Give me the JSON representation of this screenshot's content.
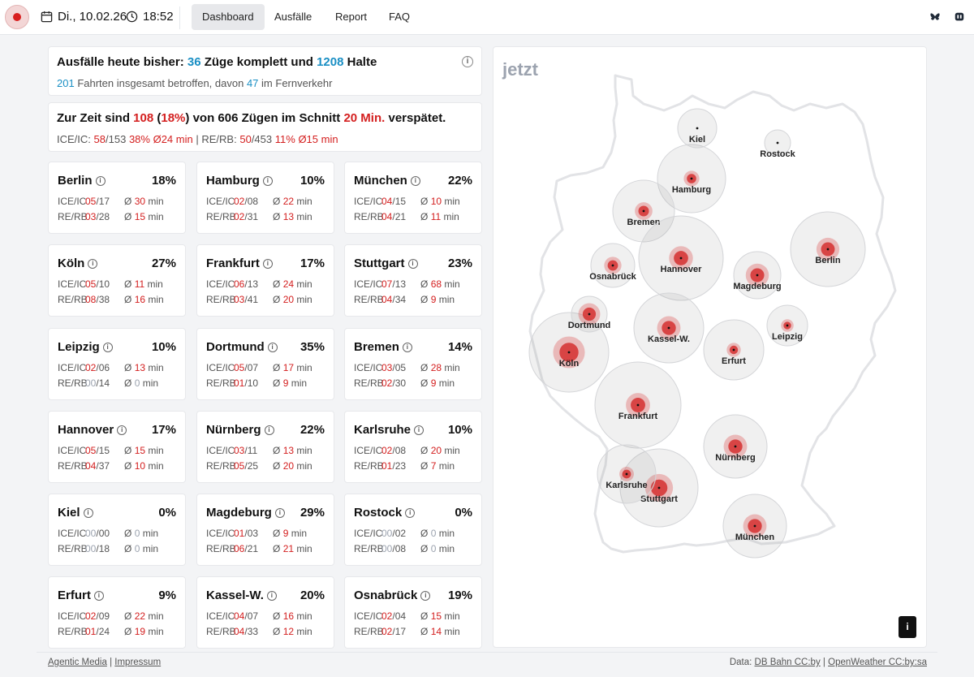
{
  "header": {
    "date": "Di., 10.02.26",
    "time": "18:52",
    "nav": [
      "Dashboard",
      "Ausfälle",
      "Report",
      "FAQ"
    ],
    "active_nav": "Dashboard"
  },
  "summary": {
    "line1": {
      "pre": "Ausfälle heute bisher:",
      "trains": "36",
      "mid": "Züge komplett und",
      "stops": "1208",
      "post": "Halte"
    },
    "line2": {
      "trips": "201",
      "mid": "Fahrten insgesamt betroffen, davon",
      "long": "47",
      "post": "im Fernverkehr"
    },
    "line3": {
      "pre": "Zur Zeit sind",
      "delayed": "108",
      "pct": "18%",
      "mid": "von 606 Zügen im Schnitt",
      "avg": "20 Min.",
      "post": "verspätet."
    },
    "line4": {
      "ice_label": "ICE/IC:",
      "ice_cnt": "58",
      "ice_tot": "/153",
      "ice_pct": "38%",
      "ice_avg": "Ø24 min",
      "sep": "|",
      "re_label": "RE/RB:",
      "re_cnt": "50",
      "re_tot": "/453",
      "re_pct": "11%",
      "re_avg": "Ø15 min"
    }
  },
  "row_labels": {
    "ice": "ICE/IC",
    "re": "RE/RB"
  },
  "cities": [
    {
      "name": "Berlin",
      "pct": "18%",
      "ice_cnt": "05",
      "ice_tot": "/17",
      "ice_avg": "30",
      "re_cnt": "03",
      "re_tot": "/28",
      "re_avg": "15"
    },
    {
      "name": "Hamburg",
      "pct": "10%",
      "ice_cnt": "02",
      "ice_tot": "/08",
      "ice_avg": "22",
      "re_cnt": "02",
      "re_tot": "/31",
      "re_avg": "13"
    },
    {
      "name": "München",
      "pct": "22%",
      "ice_cnt": "04",
      "ice_tot": "/15",
      "ice_avg": "10",
      "re_cnt": "04",
      "re_tot": "/21",
      "re_avg": "11"
    },
    {
      "name": "Köln",
      "pct": "27%",
      "ice_cnt": "05",
      "ice_tot": "/10",
      "ice_avg": "11",
      "re_cnt": "08",
      "re_tot": "/38",
      "re_avg": "16"
    },
    {
      "name": "Frankfurt",
      "pct": "17%",
      "ice_cnt": "06",
      "ice_tot": "/13",
      "ice_avg": "24",
      "re_cnt": "03",
      "re_tot": "/41",
      "re_avg": "20"
    },
    {
      "name": "Stuttgart",
      "pct": "23%",
      "ice_cnt": "07",
      "ice_tot": "/13",
      "ice_avg": "68",
      "re_cnt": "04",
      "re_tot": "/34",
      "re_avg": "9"
    },
    {
      "name": "Leipzig",
      "pct": "10%",
      "ice_cnt": "02",
      "ice_tot": "/06",
      "ice_avg": "13",
      "re_cnt": "00",
      "re_tot": "/14",
      "re_avg": "0"
    },
    {
      "name": "Dortmund",
      "pct": "35%",
      "ice_cnt": "05",
      "ice_tot": "/07",
      "ice_avg": "17",
      "re_cnt": "01",
      "re_tot": "/10",
      "re_avg": "9"
    },
    {
      "name": "Bremen",
      "pct": "14%",
      "ice_cnt": "03",
      "ice_tot": "/05",
      "ice_avg": "28",
      "re_cnt": "02",
      "re_tot": "/30",
      "re_avg": "9"
    },
    {
      "name": "Hannover",
      "pct": "17%",
      "ice_cnt": "05",
      "ice_tot": "/15",
      "ice_avg": "15",
      "re_cnt": "04",
      "re_tot": "/37",
      "re_avg": "10"
    },
    {
      "name": "Nürnberg",
      "pct": "22%",
      "ice_cnt": "03",
      "ice_tot": "/11",
      "ice_avg": "13",
      "re_cnt": "05",
      "re_tot": "/25",
      "re_avg": "20"
    },
    {
      "name": "Karlsruhe",
      "pct": "10%",
      "ice_cnt": "02",
      "ice_tot": "/08",
      "ice_avg": "20",
      "re_cnt": "01",
      "re_tot": "/23",
      "re_avg": "7"
    },
    {
      "name": "Kiel",
      "pct": "0%",
      "ice_cnt": "00",
      "ice_tot": "/00",
      "ice_avg": "0",
      "re_cnt": "00",
      "re_tot": "/18",
      "re_avg": "0"
    },
    {
      "name": "Magdeburg",
      "pct": "29%",
      "ice_cnt": "01",
      "ice_tot": "/03",
      "ice_avg": "9",
      "re_cnt": "06",
      "re_tot": "/21",
      "re_avg": "21"
    },
    {
      "name": "Rostock",
      "pct": "0%",
      "ice_cnt": "00",
      "ice_tot": "/02",
      "ice_avg": "0",
      "re_cnt": "00",
      "re_tot": "/08",
      "re_avg": "0"
    },
    {
      "name": "Erfurt",
      "pct": "9%",
      "ice_cnt": "02",
      "ice_tot": "/09",
      "ice_avg": "22",
      "re_cnt": "01",
      "re_tot": "/24",
      "re_avg": "19"
    },
    {
      "name": "Kassel-W.",
      "pct": "20%",
      "ice_cnt": "04",
      "ice_tot": "/07",
      "ice_avg": "16",
      "re_cnt": "04",
      "re_tot": "/33",
      "re_avg": "12"
    },
    {
      "name": "Osnabrück",
      "pct": "19%",
      "ice_cnt": "02",
      "ice_tot": "/04",
      "ice_avg": "15",
      "re_cnt": "02",
      "re_tot": "/17",
      "re_avg": "14"
    }
  ],
  "avg_prefix": "Ø",
  "min_suffix": "min",
  "map": {
    "title": "jetzt",
    "info_button": "i"
  },
  "footer": {
    "left_link1": "Agentic Media",
    "left_link2": "Impressum",
    "sep": "|",
    "data_label": "Data:",
    "right_link1": "DB Bahn CC:by",
    "right_link2": "OpenWeather CC:by:sa"
  },
  "colors": {
    "accent_blue": "#1a8fc4",
    "delay_red": "#d42020",
    "zero_gray": "#9ca3af"
  }
}
